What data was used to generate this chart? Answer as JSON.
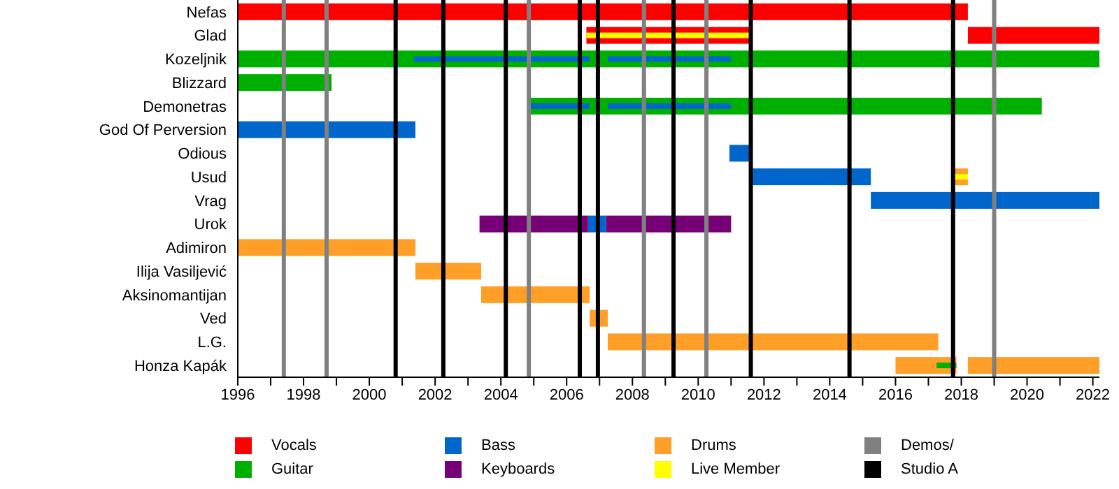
{
  "chart_data": {
    "type": "bar",
    "orientation": "horizontal",
    "legend": "bottom",
    "categories": [
      "Nefas",
      "Glad",
      "Kozeljnik",
      "Blizzard",
      "Demonetras",
      "God Of Perversion",
      "Odious",
      "Usud",
      "Vrag",
      "Urok",
      "Adimiron",
      "Ilija Vasiljević",
      "Aksinomantijan",
      "Ved",
      "L.G.",
      "Honza Kapák"
    ],
    "xlim": [
      1996,
      2022.2
    ],
    "xticks": [
      1996,
      {
        "value": 1997,
        "label": null
      },
      1998,
      {
        "value": 1999,
        "label": null
      },
      2000,
      {
        "value": 2001,
        "label": null
      },
      2002,
      {
        "value": 2003,
        "label": null
      },
      2004,
      {
        "value": 2005,
        "label": null
      },
      2006,
      {
        "value": 2007,
        "label": null
      },
      2008,
      {
        "value": 2009,
        "label": null
      },
      2010,
      {
        "value": 2011,
        "label": null
      },
      2012,
      {
        "value": 2013,
        "label": null
      },
      2014,
      {
        "value": 2015,
        "label": null
      },
      2016,
      {
        "value": 2017,
        "label": null
      },
      2018,
      {
        "value": 2019,
        "label": null
      },
      2020,
      {
        "value": 2021,
        "label": null
      },
      2022
    ],
    "series": [
      {
        "name": "Vocals",
        "color": "#ff0000",
        "base": [
          1996,
          2006.6,
          null,
          null,
          null,
          null,
          null,
          null,
          null,
          null,
          null,
          null,
          null,
          null,
          null,
          null
        ],
        "values": [
          22.2,
          5.0,
          null,
          null,
          null,
          null,
          null,
          null,
          null,
          null,
          null,
          null,
          null,
          null,
          null,
          null
        ]
      },
      {
        "color": "#ff0000",
        "base": [
          null,
          2018.2,
          null,
          null,
          null,
          null,
          null,
          null,
          null,
          null,
          null,
          null,
          null,
          null,
          null,
          null
        ],
        "values": [
          null,
          4.0,
          null,
          null,
          null,
          null,
          null,
          null,
          null,
          null,
          null,
          null,
          null,
          null,
          null,
          null
        ]
      },
      {
        "name": "Guitar",
        "color": "#00b000",
        "base": [
          null,
          null,
          1996,
          1996,
          2004.85,
          null,
          null,
          null,
          null,
          null,
          null,
          null,
          null,
          null,
          null,
          null
        ],
        "values": [
          null,
          null,
          26.2,
          2.85,
          15.6,
          null,
          null,
          null,
          null,
          null,
          null,
          null,
          null,
          null,
          null,
          null
        ]
      },
      {
        "name": "Bass",
        "color": "#0066cc",
        "base": [
          null,
          null,
          2001.35,
          null,
          2004.85,
          1996,
          2010.95,
          2011.65,
          2015.25,
          2006.65,
          null,
          null,
          null,
          null,
          null,
          null
        ],
        "values": [
          null,
          null,
          5.35,
          null,
          1.85,
          5.4,
          0.7,
          3.6,
          6.95,
          0.55,
          null,
          null,
          null,
          null,
          null,
          null
        ]
      },
      {
        "color": "#0066cc",
        "base": [
          null,
          null,
          2007.25,
          null,
          2007.25,
          null,
          null,
          null,
          null,
          null,
          null,
          null,
          null,
          null,
          null,
          null
        ],
        "values": [
          null,
          null,
          3.75,
          null,
          3.75,
          null,
          null,
          null,
          null,
          null,
          null,
          null,
          null,
          null,
          null,
          null
        ]
      },
      {
        "name": "Keyboards",
        "color": "#770077",
        "base": [
          null,
          null,
          null,
          null,
          null,
          null,
          null,
          null,
          null,
          2003.35,
          null,
          null,
          null,
          null,
          null,
          null
        ],
        "values": [
          null,
          null,
          null,
          null,
          null,
          null,
          null,
          null,
          null,
          3.3,
          null,
          null,
          null,
          null,
          null,
          null
        ]
      },
      {
        "color": "#770077",
        "base": [
          null,
          null,
          null,
          null,
          null,
          null,
          null,
          null,
          null,
          2007.2,
          null,
          null,
          null,
          null,
          null,
          null
        ],
        "values": [
          null,
          null,
          null,
          null,
          null,
          null,
          null,
          null,
          null,
          3.8,
          null,
          null,
          null,
          null,
          null,
          null
        ]
      },
      {
        "name": "Drums",
        "color": "#ff9f27",
        "base": [
          null,
          null,
          null,
          null,
          null,
          null,
          null,
          2017.8,
          null,
          null,
          1996,
          2001.4,
          2003.4,
          2006.7,
          2007.25,
          2016.0
        ],
        "values": [
          null,
          null,
          null,
          null,
          null,
          null,
          null,
          0.4,
          null,
          null,
          5.4,
          2.0,
          3.3,
          0.55,
          10.05,
          1.85
        ]
      },
      {
        "color": "#ff9f27",
        "base": [
          null,
          null,
          null,
          null,
          null,
          null,
          null,
          null,
          null,
          null,
          null,
          null,
          null,
          null,
          null,
          2018.2
        ],
        "values": [
          null,
          null,
          null,
          null,
          null,
          null,
          null,
          null,
          null,
          null,
          null,
          null,
          null,
          null,
          null,
          4.0
        ]
      },
      {
        "color": "#00b000",
        "base": [
          null,
          null,
          null,
          null,
          null,
          null,
          null,
          null,
          null,
          null,
          null,
          null,
          null,
          null,
          null,
          2017.25
        ],
        "values": [
          null,
          null,
          null,
          null,
          null,
          null,
          null,
          null,
          null,
          null,
          null,
          null,
          null,
          null,
          null,
          0.6
        ]
      },
      {
        "name": "Live Member",
        "color": "#ffff00",
        "base": [
          null,
          2006.6,
          null,
          null,
          null,
          null,
          null,
          2017.8,
          null,
          null,
          null,
          null,
          null,
          null,
          null,
          null
        ],
        "values": [
          null,
          5.0,
          null,
          null,
          null,
          null,
          null,
          0.4,
          null,
          null,
          null,
          null,
          null,
          null,
          null,
          null
        ]
      }
    ],
    "ref_lines": [
      {
        "axis": "x",
        "value": 1997.4,
        "label": "Demos/",
        "color": "#808080"
      },
      {
        "axis": "x",
        "value": 1998.7,
        "color": "#808080"
      },
      {
        "axis": "x",
        "value": 2000.8,
        "label": "Studio A",
        "color": "#000000"
      },
      {
        "axis": "x",
        "value": 2002.25,
        "color": "#000000"
      },
      {
        "axis": "x",
        "value": 2004.15,
        "color": "#000000"
      },
      {
        "axis": "x",
        "value": 2004.85,
        "color": "#808080"
      },
      {
        "axis": "x",
        "value": 2006.4,
        "color": "#000000"
      },
      {
        "axis": "x",
        "value": 2006.95,
        "color": "#000000"
      },
      {
        "axis": "x",
        "value": 2008.35,
        "color": "#808080"
      },
      {
        "axis": "x",
        "value": 2009.25,
        "color": "#000000"
      },
      {
        "axis": "x",
        "value": 2010.25,
        "color": "#808080"
      },
      {
        "axis": "x",
        "value": 2011.6,
        "color": "#000000"
      },
      {
        "axis": "x",
        "value": 2014.6,
        "color": "#000000"
      },
      {
        "axis": "x",
        "value": 2017.75,
        "color": "#000000"
      },
      {
        "axis": "x",
        "value": 2019.0,
        "color": "#808080"
      }
    ]
  }
}
